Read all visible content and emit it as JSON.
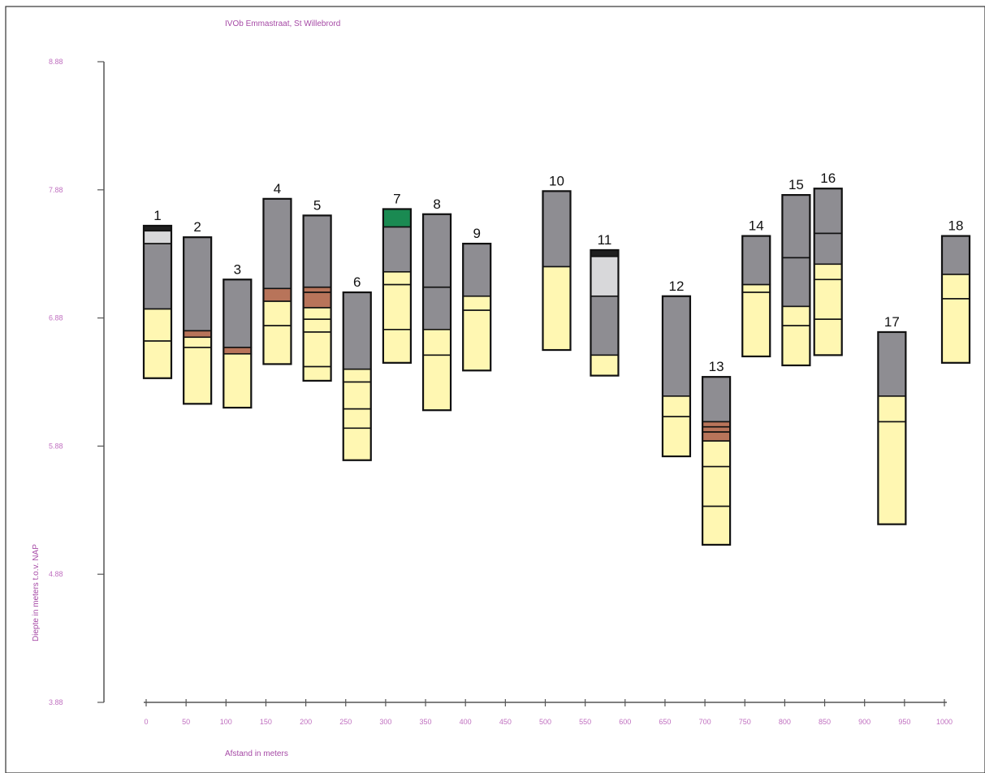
{
  "chart_data": {
    "type": "stacked-column",
    "title": "IVOb Emmastraat, St Willebrord",
    "xlabel": "Afstand in meters",
    "ylabel": "Diepte in meters t.o.v. NAP",
    "xlim": [
      0,
      1000
    ],
    "ylim": [
      3.88,
      8.88
    ],
    "x_ticks": [
      "0",
      "50",
      "100",
      "150",
      "200",
      "250",
      "300",
      "350",
      "400",
      "450",
      "500",
      "550",
      "600",
      "650",
      "700",
      "750",
      "800",
      "850",
      "900",
      "950",
      "1000"
    ],
    "y_ticks": [
      "8.88",
      "7.88",
      "6.88",
      "5.88",
      "4.88",
      "3.88"
    ],
    "colors": {
      "clay": "#8e8d92",
      "sand": "#fff7b2",
      "peat": "#b8745a",
      "fill": "#d8d8da",
      "topsoil": "#1f1f1f",
      "grass": "#1a8a52"
    },
    "boreholes": [
      {
        "label": "1",
        "x": 0,
        "top": 7.6,
        "layers": [
          {
            "type": "topsoil",
            "bottom": 7.56
          },
          {
            "type": "fill",
            "bottom": 7.46
          },
          {
            "type": "clay",
            "bottom": 6.95
          },
          {
            "type": "sand",
            "bottom": 6.7
          },
          {
            "type": "sand",
            "bottom": 6.41
          }
        ]
      },
      {
        "label": "2",
        "x": 50,
        "top": 7.51,
        "layers": [
          {
            "type": "clay",
            "bottom": 6.78
          },
          {
            "type": "peat",
            "bottom": 6.73
          },
          {
            "type": "sand",
            "bottom": 6.65
          },
          {
            "type": "sand",
            "bottom": 6.21
          }
        ]
      },
      {
        "label": "3",
        "x": 100,
        "top": 7.18,
        "layers": [
          {
            "type": "clay",
            "bottom": 6.65
          },
          {
            "type": "peat",
            "bottom": 6.6
          },
          {
            "type": "sand",
            "bottom": 6.18
          }
        ]
      },
      {
        "label": "4",
        "x": 150,
        "top": 7.81,
        "layers": [
          {
            "type": "clay",
            "bottom": 7.11
          },
          {
            "type": "peat",
            "bottom": 7.01
          },
          {
            "type": "sand",
            "bottom": 6.82
          },
          {
            "type": "sand",
            "bottom": 6.52
          }
        ]
      },
      {
        "label": "5",
        "x": 200,
        "top": 7.68,
        "layers": [
          {
            "type": "clay",
            "bottom": 7.12
          },
          {
            "type": "peat",
            "bottom": 7.08
          },
          {
            "type": "peat",
            "bottom": 6.96
          },
          {
            "type": "sand",
            "bottom": 6.87
          },
          {
            "type": "sand",
            "bottom": 6.77
          },
          {
            "type": "sand",
            "bottom": 6.5
          },
          {
            "type": "sand",
            "bottom": 6.39
          }
        ]
      },
      {
        "label": "6",
        "x": 250,
        "top": 7.08,
        "layers": [
          {
            "type": "clay",
            "bottom": 6.48
          },
          {
            "type": "sand",
            "bottom": 6.38
          },
          {
            "type": "sand",
            "bottom": 6.17
          },
          {
            "type": "sand",
            "bottom": 6.02
          },
          {
            "type": "sand",
            "bottom": 5.77
          }
        ]
      },
      {
        "label": "7",
        "x": 300,
        "top": 7.73,
        "layers": [
          {
            "type": "grass",
            "bottom": 7.59
          },
          {
            "type": "clay",
            "bottom": 7.24
          },
          {
            "type": "sand",
            "bottom": 7.14
          },
          {
            "type": "sand",
            "bottom": 6.79
          },
          {
            "type": "sand",
            "bottom": 6.53
          }
        ]
      },
      {
        "label": "8",
        "x": 350,
        "top": 7.69,
        "layers": [
          {
            "type": "clay",
            "bottom": 7.12
          },
          {
            "type": "clay",
            "bottom": 6.79
          },
          {
            "type": "sand",
            "bottom": 6.59
          },
          {
            "type": "sand",
            "bottom": 6.16
          }
        ]
      },
      {
        "label": "9",
        "x": 400,
        "top": 7.46,
        "layers": [
          {
            "type": "clay",
            "bottom": 7.05
          },
          {
            "type": "sand",
            "bottom": 6.94
          },
          {
            "type": "sand",
            "bottom": 6.47
          }
        ]
      },
      {
        "label": "10",
        "x": 500,
        "top": 7.87,
        "layers": [
          {
            "type": "clay",
            "bottom": 7.28
          },
          {
            "type": "sand",
            "bottom": 6.63
          }
        ]
      },
      {
        "label": "11",
        "x": 560,
        "top": 7.41,
        "layers": [
          {
            "type": "topsoil",
            "bottom": 7.36
          },
          {
            "type": "fill",
            "bottom": 7.05
          },
          {
            "type": "clay",
            "bottom": 6.59
          },
          {
            "type": "sand",
            "bottom": 6.43
          }
        ]
      },
      {
        "label": "12",
        "x": 650,
        "top": 7.05,
        "layers": [
          {
            "type": "clay",
            "bottom": 6.27
          },
          {
            "type": "sand",
            "bottom": 6.11
          },
          {
            "type": "sand",
            "bottom": 5.8
          }
        ]
      },
      {
        "label": "13",
        "x": 700,
        "top": 6.42,
        "layers": [
          {
            "type": "clay",
            "bottom": 6.07
          },
          {
            "type": "peat",
            "bottom": 6.03
          },
          {
            "type": "peat",
            "bottom": 5.99
          },
          {
            "type": "peat",
            "bottom": 5.92
          },
          {
            "type": "sand",
            "bottom": 5.72
          },
          {
            "type": "sand",
            "bottom": 5.41
          },
          {
            "type": "sand",
            "bottom": 5.11
          }
        ]
      },
      {
        "label": "14",
        "x": 750,
        "top": 7.52,
        "layers": [
          {
            "type": "clay",
            "bottom": 7.14
          },
          {
            "type": "sand",
            "bottom": 7.08
          },
          {
            "type": "sand",
            "bottom": 6.58
          }
        ]
      },
      {
        "label": "15",
        "x": 800,
        "top": 7.84,
        "layers": [
          {
            "type": "clay",
            "bottom": 7.35
          },
          {
            "type": "clay",
            "bottom": 6.97
          },
          {
            "type": "sand",
            "bottom": 6.82
          },
          {
            "type": "sand",
            "bottom": 6.51
          }
        ]
      },
      {
        "label": "16",
        "x": 840,
        "top": 7.89,
        "layers": [
          {
            "type": "clay",
            "bottom": 7.54
          },
          {
            "type": "clay",
            "bottom": 7.3
          },
          {
            "type": "sand",
            "bottom": 7.18
          },
          {
            "type": "sand",
            "bottom": 6.87
          },
          {
            "type": "sand",
            "bottom": 6.59
          }
        ]
      },
      {
        "label": "17",
        "x": 920,
        "top": 6.77,
        "layers": [
          {
            "type": "clay",
            "bottom": 6.27
          },
          {
            "type": "sand",
            "bottom": 6.07
          },
          {
            "type": "sand",
            "bottom": 5.27
          }
        ]
      },
      {
        "label": "18",
        "x": 1000,
        "top": 7.52,
        "layers": [
          {
            "type": "clay",
            "bottom": 7.22
          },
          {
            "type": "sand",
            "bottom": 7.03
          },
          {
            "type": "sand",
            "bottom": 6.53
          }
        ]
      }
    ]
  }
}
